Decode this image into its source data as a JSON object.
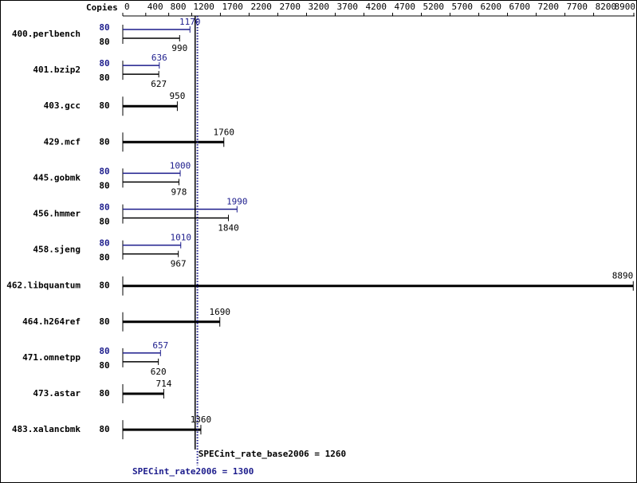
{
  "chart_data": {
    "type": "bar",
    "orientation": "horizontal",
    "copies_label": "Copies",
    "categories": [
      "400.perlbench",
      "401.bzip2",
      "403.gcc",
      "429.mcf",
      "445.gobmk",
      "456.hmmer",
      "458.sjeng",
      "462.libquantum",
      "464.h264ref",
      "471.omnetpp",
      "473.astar",
      "483.xalancbmk"
    ],
    "series": [
      {
        "color": "#000000",
        "copies": [
          80,
          80,
          80,
          80,
          80,
          80,
          80,
          80,
          80,
          80,
          80,
          80
        ],
        "values": [
          990,
          627,
          950,
          1760,
          978,
          1840,
          967,
          8890,
          1690,
          620,
          714,
          1360
        ]
      },
      {
        "color": "#1c1c8c",
        "copies": [
          80,
          80,
          null,
          null,
          80,
          80,
          80,
          null,
          null,
          80,
          null,
          null
        ],
        "values": [
          1170,
          636,
          null,
          null,
          1000,
          1990,
          1010,
          null,
          null,
          657,
          null,
          null
        ]
      }
    ],
    "xlim": [
      0,
      8900
    ],
    "xticks": [
      0,
      400,
      800,
      1200,
      1700,
      2200,
      2700,
      3200,
      3700,
      4200,
      4700,
      5200,
      5700,
      6200,
      6700,
      7200,
      7700,
      8200,
      8900
    ],
    "reference_lines": [
      {
        "label": "SPECint_rate_base2006 = 1260",
        "value": 1260,
        "color": "#000000",
        "style": "solid"
      },
      {
        "label": "SPECint_rate2006 = 1300",
        "value": 1300,
        "color": "#1c1c8c",
        "style": "dotted"
      }
    ]
  }
}
